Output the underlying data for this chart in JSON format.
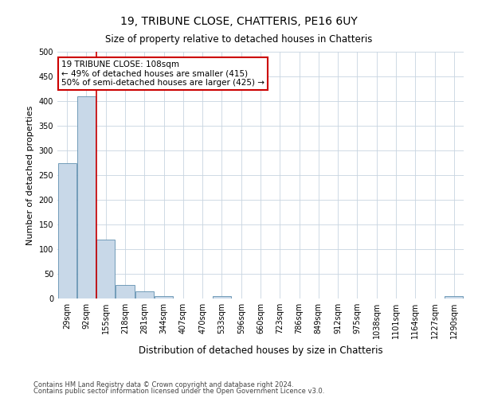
{
  "title": "19, TRIBUNE CLOSE, CHATTERIS, PE16 6UY",
  "subtitle": "Size of property relative to detached houses in Chatteris",
  "xlabel": "Distribution of detached houses by size in Chatteris",
  "ylabel": "Number of detached properties",
  "categories": [
    "29sqm",
    "92sqm",
    "155sqm",
    "218sqm",
    "281sqm",
    "344sqm",
    "407sqm",
    "470sqm",
    "533sqm",
    "596sqm",
    "660sqm",
    "723sqm",
    "786sqm",
    "849sqm",
    "912sqm",
    "975sqm",
    "1038sqm",
    "1101sqm",
    "1164sqm",
    "1227sqm",
    "1290sqm"
  ],
  "values": [
    275,
    410,
    120,
    28,
    14,
    5,
    0,
    0,
    5,
    0,
    0,
    0,
    0,
    0,
    0,
    0,
    0,
    0,
    0,
    0,
    5
  ],
  "bar_color": "#c8d8e8",
  "bar_edge_color": "#6090b0",
  "annotation_box_text": "19 TRIBUNE CLOSE: 108sqm\n← 49% of detached houses are smaller (415)\n50% of semi-detached houses are larger (425) →",
  "ylim": [
    0,
    500
  ],
  "yticks": [
    0,
    50,
    100,
    150,
    200,
    250,
    300,
    350,
    400,
    450,
    500
  ],
  "footer1": "Contains HM Land Registry data © Crown copyright and database right 2024.",
  "footer2": "Contains public sector information licensed under the Open Government Licence v3.0.",
  "background_color": "#ffffff",
  "grid_color": "#c8d4e0",
  "annotation_line_color": "#cc0000",
  "annotation_box_edge_color": "#cc0000",
  "title_fontsize": 10,
  "subtitle_fontsize": 8.5,
  "ylabel_fontsize": 8,
  "xlabel_fontsize": 8.5,
  "tick_fontsize": 7,
  "annotation_fontsize": 7.5,
  "footer_fontsize": 6
}
